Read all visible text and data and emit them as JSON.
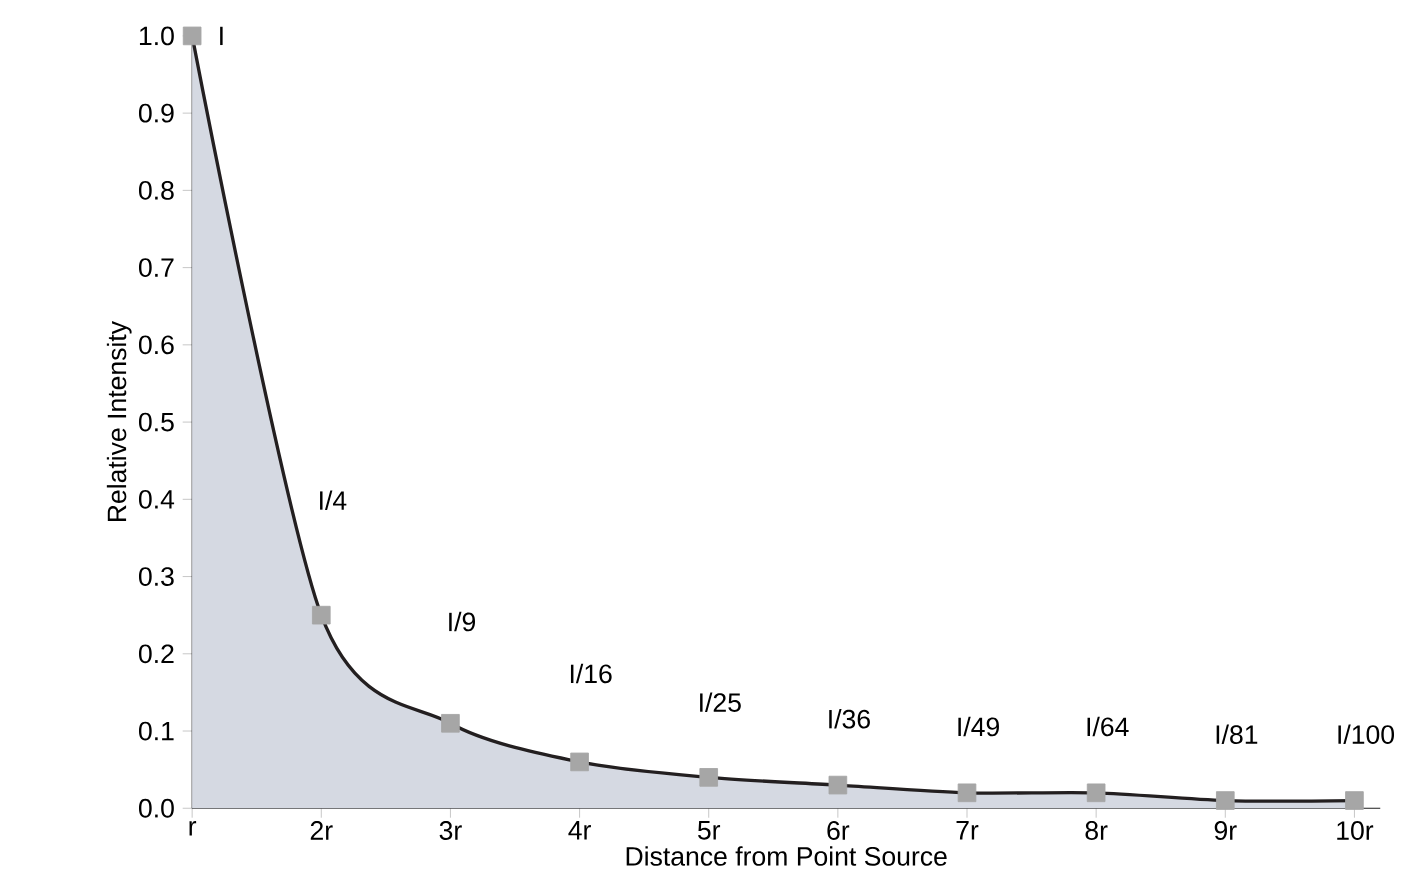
{
  "chart_data": {
    "type": "area",
    "xlabel": "Distance from Point Source",
    "ylabel": "Relative Intensity",
    "categories": [
      "r",
      "2r",
      "3r",
      "4r",
      "5r",
      "6r",
      "7r",
      "8r",
      "9r",
      "10r"
    ],
    "series": [
      {
        "color": "#231f20",
        "values": [
          1.0,
          0.25,
          0.11,
          0.06,
          0.04,
          0.03,
          0.02,
          0.02,
          0.01,
          0.01
        ]
      }
    ],
    "ylim": [
      0,
      1.0
    ],
    "yticks": [
      {
        "value": 0,
        "label": "0.0"
      },
      0.1,
      0.2,
      0.3,
      0.4,
      0.5,
      0.6,
      0.7,
      0.8,
      0.9,
      {
        "value": 1.0,
        "label": "1.0"
      }
    ],
    "marker": "square",
    "annotations": [
      "I",
      "I/4",
      "I/9",
      "I/16",
      "I/25",
      "I/36",
      "I/49",
      "I/64",
      "I/81",
      "I/100"
    ]
  }
}
